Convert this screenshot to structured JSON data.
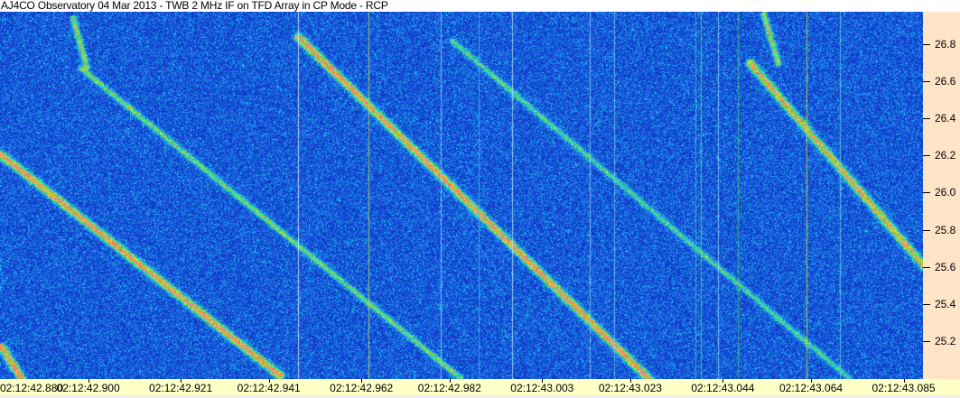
{
  "title": "AJ4CO Observatory 04 Mar 2013 - TWB 2 MHz IF on TFD Array in CP Mode - RCP",
  "chart_data": {
    "type": "heatmap",
    "title": "AJ4CO Observatory 04 Mar 2013 - TWB 2 MHz IF on TFD Array in CP Mode - RCP",
    "x_axis": {
      "position": "bottom",
      "range_seconds_after_02_12": [
        42.88,
        43.0894
      ],
      "tick_labels": [
        "02:12:42.880",
        "02:12:42.900",
        "02:12:42.921",
        "02:12:42.941",
        "02:12:42.962",
        "02:12:42.982",
        "02:12:43.003",
        "02:12:43.023",
        "02:12:43.044",
        "02:12:43.064",
        "02:12:43.085"
      ]
    },
    "y_axis": {
      "position": "right",
      "range": [
        24.995,
        26.975
      ],
      "tick_labels": [
        "26.8",
        "26.6",
        "26.4",
        "26.2",
        "26.0",
        "25.8",
        "25.6",
        "25.4",
        "25.2"
      ]
    },
    "colormap": [
      "#0b1f8c",
      "#1238c8",
      "#1a6af0",
      "#20c8e8",
      "#40e070",
      "#e0f020",
      "#ff6040",
      "#ff80c0"
    ],
    "background_color": "#1540b0",
    "drift_traces": [
      {
        "start": [
          "02:12:42.880",
          26.21
        ],
        "end": [
          "02:12:42.9435",
          25.015
        ],
        "intensity": 1.0
      },
      {
        "start": [
          "02:12:42.880",
          25.18
        ],
        "end": [
          "02:12:42.8851",
          24.99
        ],
        "intensity": 1.0
      },
      {
        "start": [
          "02:12:42.8984",
          26.67
        ],
        "end": [
          "02:12:42.9845",
          25.0
        ],
        "intensity": 0.6
      },
      {
        "start": [
          "02:12:42.9476",
          26.84
        ],
        "end": [
          "02:12:43.0275",
          24.99
        ],
        "intensity": 1.0
      },
      {
        "start": [
          "02:12:42.9825",
          26.82
        ],
        "end": [
          "02:12:43.0726",
          25.0
        ],
        "intensity": 0.5
      },
      {
        "start": [
          "02:12:43.0501",
          26.7
        ],
        "end": [
          "02:12:43.0894",
          25.61
        ],
        "intensity": 0.9
      },
      {
        "start": [
          "02:12:42.8964",
          26.95
        ],
        "end": [
          "02:12:42.8997",
          26.67
        ],
        "intensity": 0.7
      },
      {
        "start": [
          "02:12:43.0531",
          26.97
        ],
        "end": [
          "02:12:43.0566",
          26.69
        ],
        "intensity": 0.7
      }
    ],
    "vertical_lines": [
      {
        "time": "02:12:42.9476",
        "color": "#e8f0ff"
      },
      {
        "time": "02:12:42.9636",
        "color": "#c8e040"
      },
      {
        "time": "02:12:42.9800",
        "color": "#a0d8f0"
      },
      {
        "time": "02:12:42.9886",
        "color": "#40c8e0"
      },
      {
        "time": "02:12:42.9962",
        "color": "#c0e8f8"
      },
      {
        "time": "02:12:43.0138",
        "color": "#a0d0f0"
      },
      {
        "time": "02:12:43.0193",
        "color": "#80c8e8"
      },
      {
        "time": "02:12:43.0378",
        "color": "#40d0c0"
      },
      {
        "time": "02:12:43.0390",
        "color": "#60e080"
      },
      {
        "time": "02:12:43.0429",
        "color": "#a0e0f0"
      },
      {
        "time": "02:12:43.0474",
        "color": "#50d060"
      },
      {
        "time": "02:12:43.0630",
        "color": "#e0e020"
      },
      {
        "time": "02:12:43.0706",
        "color": "#70d8e0"
      }
    ]
  }
}
